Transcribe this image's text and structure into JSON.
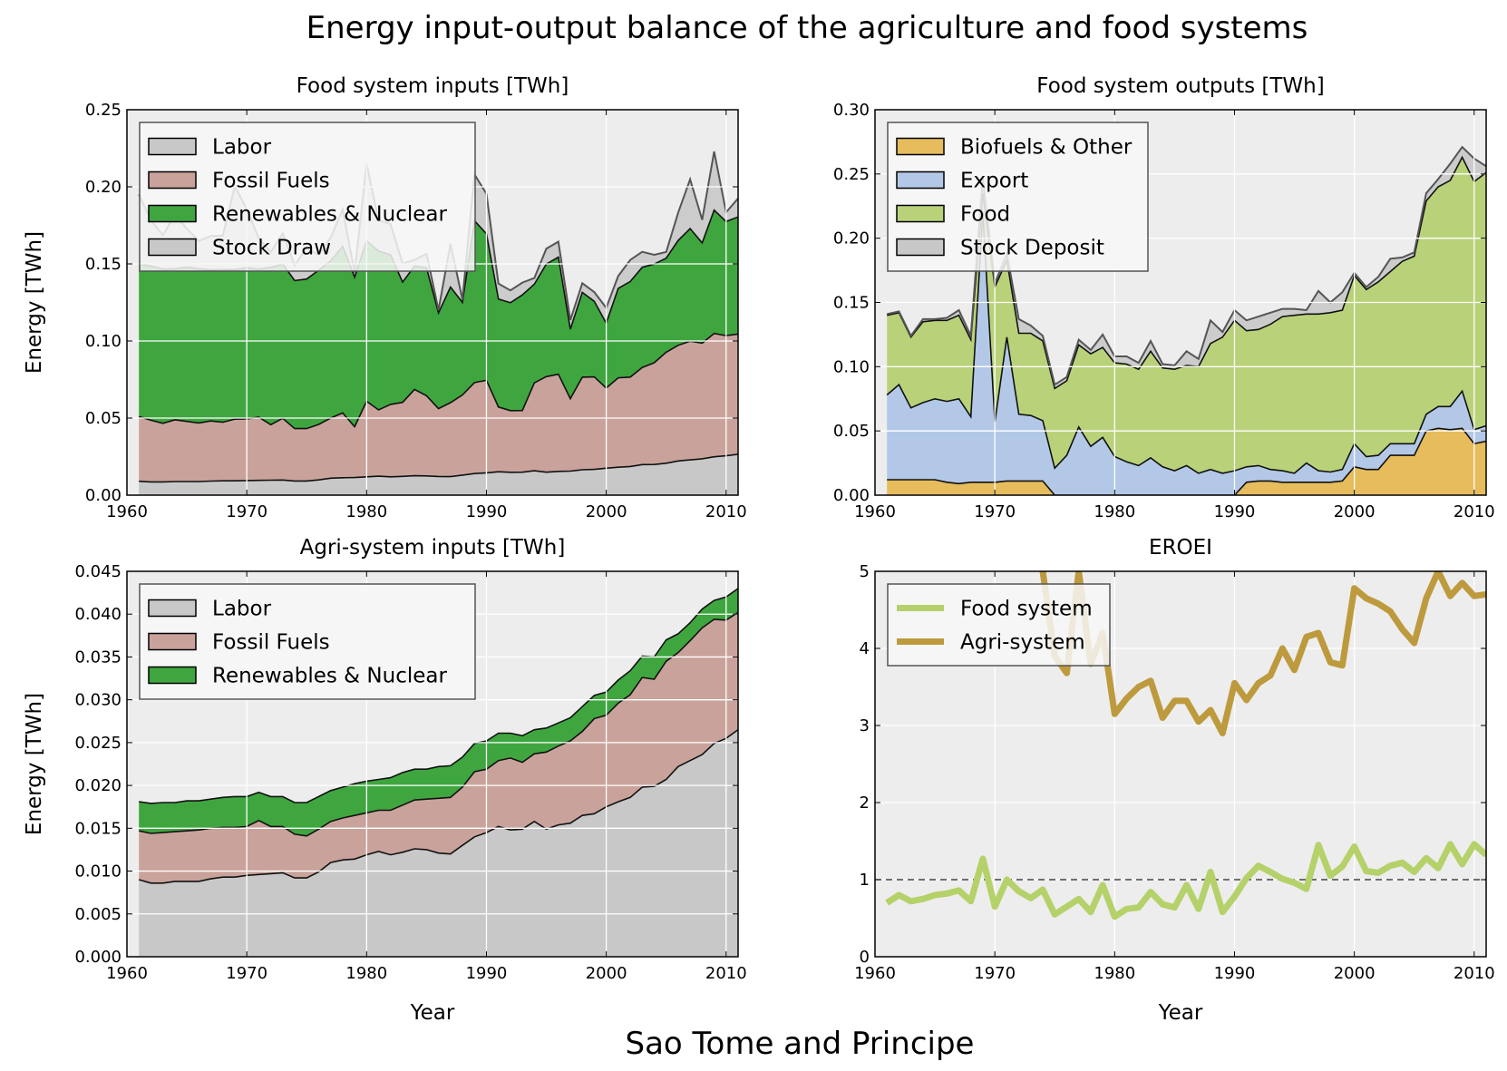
{
  "figure": {
    "title": "Energy input-output balance of the agriculture and food systems",
    "footer": "Sao Tome and Principe"
  },
  "colors": {
    "labor": "#c8c8c8",
    "fossil": "#c9a39b",
    "renewables": "#3fa63f",
    "stock_draw": "#c8c8c8",
    "biofuels": "#e6bc5c",
    "export": "#b3c8e6",
    "food": "#b9d27a",
    "stock_deposit": "#c8c8c8",
    "eroei_food": "#b5d16a",
    "eroei_agri": "#bd9a3d",
    "panel_bg": "#ededed"
  },
  "chart_data": [
    {
      "type": "area",
      "title": "Food system inputs [TWh]",
      "xlabel": "",
      "ylabel": "Energy [TWh]",
      "xlim": [
        1960,
        2011
      ],
      "ylim": [
        0,
        0.25
      ],
      "xticks": [
        "1960",
        "1970",
        "1980",
        "1990",
        "2000",
        "2010"
      ],
      "yticks": [
        "0.00",
        "0.05",
        "0.10",
        "0.15",
        "0.20",
        "0.25"
      ],
      "grid": true,
      "legend_position": "top-left",
      "stacked": true,
      "x": [
        1961,
        1962,
        1963,
        1964,
        1965,
        1966,
        1967,
        1968,
        1969,
        1970,
        1971,
        1972,
        1973,
        1974,
        1975,
        1976,
        1977,
        1978,
        1979,
        1980,
        1981,
        1982,
        1983,
        1984,
        1985,
        1986,
        1987,
        1988,
        1989,
        1990,
        1991,
        1992,
        1993,
        1994,
        1995,
        1996,
        1997,
        1998,
        1999,
        2000,
        2001,
        2002,
        2003,
        2004,
        2005,
        2006,
        2007,
        2008,
        2009,
        2010,
        2011
      ],
      "series": [
        {
          "name": "Labor",
          "color_key": "labor",
          "values": [
            0.009,
            0.0086,
            0.0086,
            0.0088,
            0.0088,
            0.0088,
            0.0091,
            0.0093,
            0.0093,
            0.0095,
            0.0096,
            0.0097,
            0.0098,
            0.0092,
            0.0092,
            0.0099,
            0.011,
            0.0113,
            0.0114,
            0.0119,
            0.0123,
            0.0119,
            0.0122,
            0.0126,
            0.0125,
            0.0121,
            0.012,
            0.013,
            0.014,
            0.0145,
            0.0152,
            0.0148,
            0.0149,
            0.0158,
            0.0149,
            0.0154,
            0.0156,
            0.0165,
            0.0167,
            0.0175,
            0.0181,
            0.0186,
            0.0198,
            0.0199,
            0.0207,
            0.0222,
            0.0229,
            0.0236,
            0.0249,
            0.0255,
            0.0265
          ]
        },
        {
          "name": "Fossil Fuels",
          "color_key": "fossil",
          "values": [
            0.042,
            0.04,
            0.038,
            0.04,
            0.039,
            0.038,
            0.039,
            0.038,
            0.04,
            0.04,
            0.041,
            0.036,
            0.04,
            0.034,
            0.034,
            0.036,
            0.039,
            0.042,
            0.033,
            0.049,
            0.043,
            0.047,
            0.048,
            0.056,
            0.052,
            0.044,
            0.048,
            0.052,
            0.059,
            0.06,
            0.042,
            0.04,
            0.04,
            0.057,
            0.062,
            0.063,
            0.047,
            0.06,
            0.06,
            0.052,
            0.058,
            0.058,
            0.063,
            0.066,
            0.072,
            0.075,
            0.077,
            0.075,
            0.08,
            0.078,
            0.078
          ]
        },
        {
          "name": "Renewables & Nuclear",
          "color_key": "renewables",
          "values": [
            0.099,
            0.1,
            0.1,
            0.098,
            0.1,
            0.1,
            0.098,
            0.099,
            0.097,
            0.098,
            0.096,
            0.102,
            0.1,
            0.096,
            0.097,
            0.1,
            0.102,
            0.108,
            0.097,
            0.104,
            0.103,
            0.097,
            0.078,
            0.08,
            0.083,
            0.062,
            0.075,
            0.06,
            0.105,
            0.095,
            0.07,
            0.07,
            0.075,
            0.064,
            0.073,
            0.076,
            0.045,
            0.055,
            0.049,
            0.042,
            0.058,
            0.062,
            0.065,
            0.064,
            0.061,
            0.068,
            0.073,
            0.065,
            0.08,
            0.074,
            0.076
          ]
        },
        {
          "name": "Stock Draw",
          "color_key": "stock_draw",
          "values": [
            0.045,
            0.03,
            0.022,
            0.035,
            0.025,
            0.018,
            0.022,
            0.022,
            0.054,
            0.038,
            0.02,
            0.01,
            0.02,
            0.01,
            0.02,
            0.01,
            0.015,
            0.024,
            0.003,
            0.05,
            0.02,
            0.02,
            0.012,
            0.004,
            0.009,
            0.002,
            0.028,
            0.002,
            0.03,
            0.026,
            0.01,
            0.008,
            0.008,
            0.004,
            0.01,
            0.01,
            0.006,
            0.006,
            0.006,
            0.01,
            0.008,
            0.014,
            0.01,
            0.006,
            0.004,
            0.018,
            0.032,
            0.015,
            0.038,
            0.006,
            0.012
          ]
        }
      ]
    },
    {
      "type": "area",
      "title": "Food system outputs [TWh]",
      "xlabel": "",
      "ylabel": "",
      "xlim": [
        1960,
        2011
      ],
      "ylim": [
        0,
        0.3
      ],
      "xticks": [
        "1960",
        "1970",
        "1980",
        "1990",
        "2000",
        "2010"
      ],
      "yticks": [
        "0.00",
        "0.05",
        "0.10",
        "0.15",
        "0.20",
        "0.25",
        "0.30"
      ],
      "grid": true,
      "legend_position": "top-left",
      "stacked": true,
      "x": [
        1961,
        1962,
        1963,
        1964,
        1965,
        1966,
        1967,
        1968,
        1969,
        1970,
        1971,
        1972,
        1973,
        1974,
        1975,
        1976,
        1977,
        1978,
        1979,
        1980,
        1981,
        1982,
        1983,
        1984,
        1985,
        1986,
        1987,
        1988,
        1989,
        1990,
        1991,
        1992,
        1993,
        1994,
        1995,
        1996,
        1997,
        1998,
        1999,
        2000,
        2001,
        2002,
        2003,
        2004,
        2005,
        2006,
        2007,
        2008,
        2009,
        2010,
        2011
      ],
      "series": [
        {
          "name": "Biofuels & Other",
          "color_key": "biofuels",
          "values": [
            0.012,
            0.012,
            0.012,
            0.012,
            0.012,
            0.01,
            0.009,
            0.01,
            0.01,
            0.01,
            0.011,
            0.011,
            0.011,
            0.011,
            0,
            0,
            0,
            0,
            0,
            0,
            0,
            0,
            0,
            0,
            0,
            0,
            0,
            0,
            0,
            0,
            0.01,
            0.011,
            0.011,
            0.01,
            0.01,
            0.01,
            0.01,
            0.01,
            0.011,
            0.022,
            0.02,
            0.02,
            0.031,
            0.031,
            0.031,
            0.05,
            0.052,
            0.051,
            0.052,
            0.04,
            0.042
          ]
        },
        {
          "name": "Export",
          "color_key": "export",
          "values": [
            0.066,
            0.074,
            0.056,
            0.06,
            0.063,
            0.063,
            0.066,
            0.051,
            0.21,
            0.047,
            0.112,
            0.052,
            0.051,
            0.047,
            0.021,
            0.031,
            0.053,
            0.038,
            0.045,
            0.03,
            0.026,
            0.023,
            0.029,
            0.022,
            0.019,
            0.023,
            0.017,
            0.02,
            0.017,
            0.019,
            0.012,
            0.012,
            0.009,
            0.009,
            0.007,
            0.015,
            0.009,
            0.008,
            0.009,
            0.018,
            0.01,
            0.011,
            0.009,
            0.009,
            0.009,
            0.013,
            0.017,
            0.018,
            0.029,
            0.011,
            0.012
          ]
        },
        {
          "name": "Food",
          "color_key": "food",
          "values": [
            0.062,
            0.056,
            0.055,
            0.063,
            0.061,
            0.063,
            0.065,
            0.06,
            0.015,
            0.105,
            0.06,
            0.063,
            0.064,
            0.062,
            0.062,
            0.058,
            0.064,
            0.072,
            0.07,
            0.073,
            0.076,
            0.075,
            0.083,
            0.077,
            0.079,
            0.078,
            0.083,
            0.098,
            0.106,
            0.117,
            0.106,
            0.106,
            0.113,
            0.12,
            0.123,
            0.116,
            0.122,
            0.124,
            0.124,
            0.131,
            0.13,
            0.135,
            0.134,
            0.142,
            0.146,
            0.166,
            0.171,
            0.176,
            0.182,
            0.193,
            0.197
          ]
        },
        {
          "name": "Stock Deposit",
          "color_key": "stock_deposit",
          "values": [
            0.001,
            0.001,
            0.001,
            0.002,
            0.001,
            0.002,
            0.004,
            0.003,
            0.012,
            0.003,
            0.005,
            0.011,
            0.006,
            0.004,
            0.003,
            0.003,
            0.004,
            0.003,
            0.01,
            0.005,
            0.006,
            0.005,
            0.008,
            0.003,
            0.003,
            0.011,
            0.006,
            0.018,
            0.004,
            0.008,
            0.008,
            0.01,
            0.009,
            0.006,
            0.005,
            0.003,
            0.018,
            0.008,
            0.014,
            0.002,
            0.002,
            0.004,
            0.01,
            0.003,
            0.003,
            0.006,
            0.006,
            0.013,
            0.008,
            0.018,
            0.005
          ]
        }
      ]
    },
    {
      "type": "area",
      "title": "Agri-system inputs [TWh]",
      "xlabel": "Year",
      "ylabel": "Energy [TWh]",
      "xlim": [
        1960,
        2011
      ],
      "ylim": [
        0,
        0.045
      ],
      "xticks": [
        "1960",
        "1970",
        "1980",
        "1990",
        "2000",
        "2010"
      ],
      "yticks": [
        "0.000",
        "0.005",
        "0.010",
        "0.015",
        "0.020",
        "0.025",
        "0.030",
        "0.035",
        "0.040",
        "0.045"
      ],
      "grid": true,
      "legend_position": "top-left",
      "stacked": true,
      "x": [
        1961,
        1962,
        1963,
        1964,
        1965,
        1966,
        1967,
        1968,
        1969,
        1970,
        1971,
        1972,
        1973,
        1974,
        1975,
        1976,
        1977,
        1978,
        1979,
        1980,
        1981,
        1982,
        1983,
        1984,
        1985,
        1986,
        1987,
        1988,
        1989,
        1990,
        1991,
        1992,
        1993,
        1994,
        1995,
        1996,
        1997,
        1998,
        1999,
        2000,
        2001,
        2002,
        2003,
        2004,
        2005,
        2006,
        2007,
        2008,
        2009,
        2010,
        2011
      ],
      "series": [
        {
          "name": "Labor",
          "color_key": "labor",
          "values": [
            0.009,
            0.0086,
            0.0086,
            0.0088,
            0.0088,
            0.0088,
            0.0091,
            0.0093,
            0.0093,
            0.0095,
            0.0096,
            0.0097,
            0.0098,
            0.0092,
            0.0092,
            0.0099,
            0.011,
            0.0113,
            0.0114,
            0.0119,
            0.0123,
            0.0119,
            0.0122,
            0.0126,
            0.0125,
            0.0121,
            0.012,
            0.013,
            0.014,
            0.0145,
            0.0152,
            0.0148,
            0.0149,
            0.0158,
            0.0149,
            0.0154,
            0.0156,
            0.0165,
            0.0167,
            0.0175,
            0.0181,
            0.0186,
            0.0198,
            0.0199,
            0.0207,
            0.0222,
            0.0229,
            0.0236,
            0.0249,
            0.0255,
            0.0265
          ]
        },
        {
          "name": "Fossil Fuels",
          "color_key": "fossil",
          "values": [
            0.0057,
            0.0058,
            0.0059,
            0.0058,
            0.0059,
            0.006,
            0.0059,
            0.0058,
            0.0058,
            0.0057,
            0.0063,
            0.0055,
            0.0054,
            0.0051,
            0.0049,
            0.005,
            0.0048,
            0.0049,
            0.0051,
            0.0049,
            0.0048,
            0.0052,
            0.0055,
            0.0057,
            0.0059,
            0.0064,
            0.0066,
            0.0068,
            0.0076,
            0.0074,
            0.0077,
            0.0084,
            0.0078,
            0.0079,
            0.009,
            0.0092,
            0.0096,
            0.0098,
            0.0111,
            0.0107,
            0.0115,
            0.012,
            0.0128,
            0.0125,
            0.0138,
            0.0133,
            0.014,
            0.0148,
            0.0145,
            0.0138,
            0.0137
          ]
        },
        {
          "name": "Renewables & Nuclear",
          "color_key": "renewables",
          "values": [
            0.0034,
            0.0035,
            0.0035,
            0.0034,
            0.0035,
            0.0034,
            0.0034,
            0.0035,
            0.0036,
            0.0035,
            0.0033,
            0.0035,
            0.0035,
            0.0037,
            0.0039,
            0.0038,
            0.0036,
            0.0036,
            0.0037,
            0.0037,
            0.0036,
            0.0038,
            0.0038,
            0.0036,
            0.0035,
            0.0037,
            0.0037,
            0.0035,
            0.0033,
            0.0033,
            0.0032,
            0.0029,
            0.0031,
            0.0028,
            0.0028,
            0.0027,
            0.0027,
            0.0029,
            0.0027,
            0.0027,
            0.0027,
            0.0028,
            0.0025,
            0.0026,
            0.0025,
            0.0022,
            0.0021,
            0.0022,
            0.0022,
            0.0027,
            0.0028
          ]
        }
      ]
    },
    {
      "type": "line",
      "title": "EROEI",
      "xlabel": "Year",
      "ylabel": "",
      "xlim": [
        1960,
        2011
      ],
      "ylim": [
        0,
        5
      ],
      "xticks": [
        "1960",
        "1970",
        "1980",
        "1990",
        "2000",
        "2010"
      ],
      "yticks": [
        "0",
        "1",
        "2",
        "3",
        "4",
        "5"
      ],
      "grid": true,
      "reference_line": 1,
      "legend_position": "top-left",
      "x": [
        1961,
        1962,
        1963,
        1964,
        1965,
        1966,
        1967,
        1968,
        1969,
        1970,
        1971,
        1972,
        1973,
        1974,
        1975,
        1976,
        1977,
        1978,
        1979,
        1980,
        1981,
        1982,
        1983,
        1984,
        1985,
        1986,
        1987,
        1988,
        1989,
        1990,
        1991,
        1992,
        1993,
        1994,
        1995,
        1996,
        1997,
        1998,
        1999,
        2000,
        2001,
        2002,
        2003,
        2004,
        2005,
        2006,
        2007,
        2008,
        2009,
        2010,
        2011
      ],
      "series": [
        {
          "name": "Food system",
          "color_key": "eroei_food",
          "values": [
            0.7,
            0.8,
            0.72,
            0.75,
            0.8,
            0.82,
            0.86,
            0.72,
            1.27,
            0.65,
            1.0,
            0.85,
            0.76,
            0.87,
            0.55,
            0.65,
            0.75,
            0.58,
            0.93,
            0.52,
            0.62,
            0.64,
            0.84,
            0.68,
            0.64,
            0.93,
            0.62,
            1.1,
            0.58,
            0.78,
            1.02,
            1.18,
            1.1,
            1.01,
            0.96,
            0.88,
            1.45,
            1.05,
            1.17,
            1.43,
            1.11,
            1.09,
            1.18,
            1.22,
            1.1,
            1.28,
            1.15,
            1.46,
            1.2,
            1.46,
            1.32
          ]
        },
        {
          "name": "Agri-system",
          "color_key": "eroei_agri",
          "values": [
            null,
            null,
            null,
            null,
            null,
            null,
            null,
            null,
            null,
            null,
            null,
            null,
            null,
            5.2,
            3.9,
            3.68,
            5.05,
            3.8,
            4.2,
            3.15,
            3.35,
            3.5,
            3.58,
            3.1,
            3.32,
            3.32,
            3.05,
            3.2,
            2.9,
            3.55,
            3.33,
            3.55,
            3.65,
            4.0,
            3.72,
            4.15,
            4.2,
            3.82,
            3.78,
            4.78,
            4.65,
            4.58,
            4.48,
            4.25,
            4.07,
            4.65,
            5.0,
            4.68,
            4.85,
            4.68,
            4.7
          ]
        }
      ]
    }
  ]
}
